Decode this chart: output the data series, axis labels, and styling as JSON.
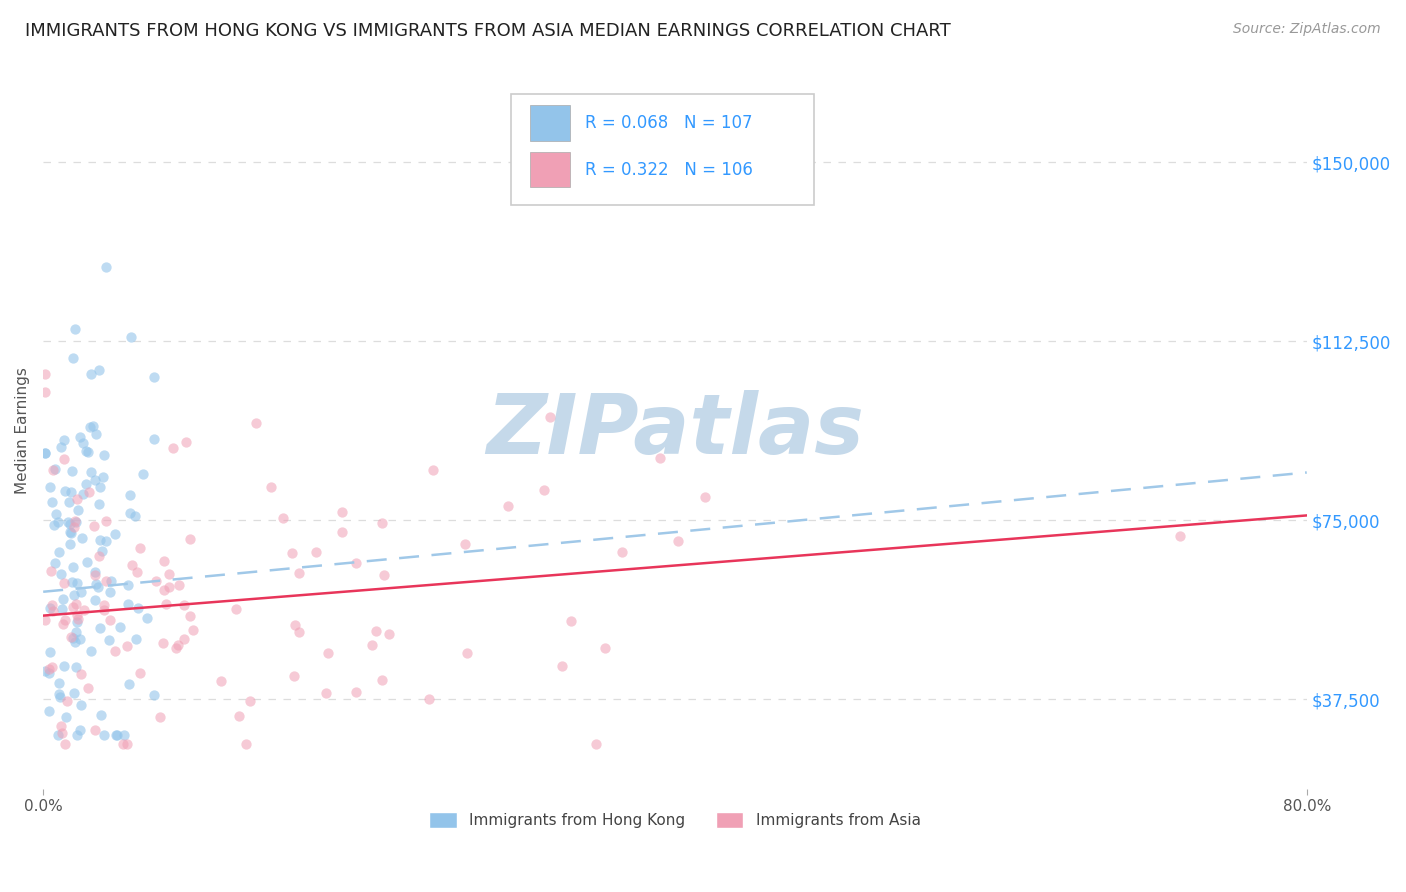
{
  "title": "IMMIGRANTS FROM HONG KONG VS IMMIGRANTS FROM ASIA MEDIAN EARNINGS CORRELATION CHART",
  "source": "Source: ZipAtlas.com",
  "ylabel": "Median Earnings",
  "xlim": [
    0.0,
    0.8
  ],
  "ylim": [
    18750,
    168750
  ],
  "yticks": [
    37500,
    75000,
    112500,
    150000
  ],
  "ytick_labels": [
    "$37,500",
    "$75,000",
    "$112,500",
    "$150,000"
  ],
  "xtick_labels": [
    "0.0%",
    "80.0%"
  ],
  "xtick_positions": [
    0.0,
    0.8
  ],
  "hk_R": 0.068,
  "hk_N": 107,
  "asia_R": 0.322,
  "asia_N": 106,
  "blue_dot_color": "#93c4ea",
  "pink_dot_color": "#f0a0b5",
  "blue_line_color": "#3a7aba",
  "blue_dash_color": "#a0c8e8",
  "pink_line_color": "#e8355a",
  "legend_R_color": "#3399ff",
  "legend_N_color": "#ff4444",
  "grid_color": "#dddddd",
  "watermark_text": "ZIPatlas",
  "watermark_color": "#c5d9ea",
  "background_color": "#ffffff",
  "title_fontsize": 13,
  "source_fontsize": 10,
  "seed": 7,
  "blue_dot_alpha": 0.6,
  "pink_dot_alpha": 0.55,
  "dot_size": 55
}
